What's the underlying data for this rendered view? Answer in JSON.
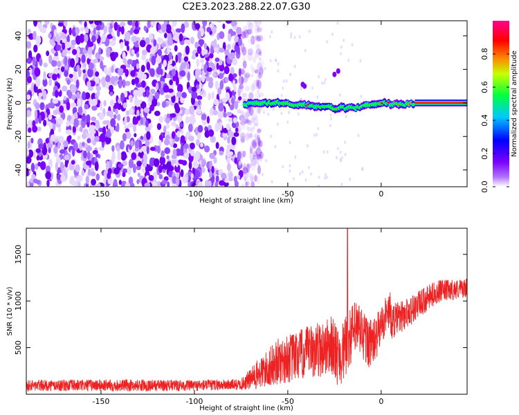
{
  "title": "C2E3.2023.288.22.07.G30",
  "chart_data": [
    {
      "type": "heatmap",
      "title": "C2E3.2023.288.22.07.G30",
      "xlabel": "Height of straight line (km)",
      "ylabel": "Frequency (Hz)",
      "xlim": [
        -190,
        46
      ],
      "ylim": [
        -50,
        49
      ],
      "xticks": [
        -150,
        -100,
        -50,
        0
      ],
      "yticks": [
        -40,
        -20,
        0,
        20,
        40
      ],
      "colorbar": {
        "label": "Normalized spectral amplitude",
        "range": [
          0,
          1
        ],
        "ticks": [
          0.0,
          0.2,
          0.4,
          0.6,
          0.8
        ],
        "tick_labels": [
          "0.0",
          "0.2",
          "0.4",
          "0.6",
          "0.8"
        ],
        "colormap": [
          "#ffffff",
          "#7b00ff",
          "#0000ff",
          "#00c8ff",
          "#00ff00",
          "#ffff00",
          "#ff8000",
          "#ff0000",
          "#ff0090"
        ]
      },
      "signal_track": {
        "points": [
          [
            -73,
            -1
          ],
          [
            -65,
            0
          ],
          [
            -55,
            0
          ],
          [
            -45,
            -1
          ],
          [
            -35,
            -2
          ],
          [
            -25,
            -3
          ],
          [
            -15,
            -3
          ],
          [
            -5,
            -1
          ],
          [
            0,
            0
          ],
          [
            10,
            -1
          ],
          [
            20,
            0
          ],
          [
            46,
            0
          ]
        ],
        "strong_from": 18
      },
      "noise_region": [
        -190,
        -70
      ],
      "grid": false
    },
    {
      "type": "line",
      "xlabel": "Height of straight line (km)",
      "ylabel": "SNR (10 * v/v)",
      "xlim": [
        -190,
        46
      ],
      "ylim": [
        0,
        1780
      ],
      "xticks": [
        -150,
        -100,
        -50,
        0
      ],
      "yticks": [
        500,
        1000,
        1500
      ],
      "series_color": "#ee2222",
      "envelope": {
        "x": [
          -190,
          -150,
          -100,
          -75,
          -65,
          -55,
          -45,
          -35,
          -25,
          -18,
          -10,
          0,
          10,
          20,
          30,
          46
        ],
        "base": [
          70,
          70,
          70,
          80,
          150,
          250,
          300,
          350,
          400,
          420,
          480,
          650,
          750,
          900,
          1050,
          1100
        ],
        "spread": [
          120,
          130,
          120,
          120,
          350,
          500,
          550,
          600,
          650,
          650,
          600,
          450,
          350,
          300,
          250,
          200
        ]
      },
      "spike": {
        "x": -18,
        "y": 1780
      },
      "grid": false
    }
  ]
}
